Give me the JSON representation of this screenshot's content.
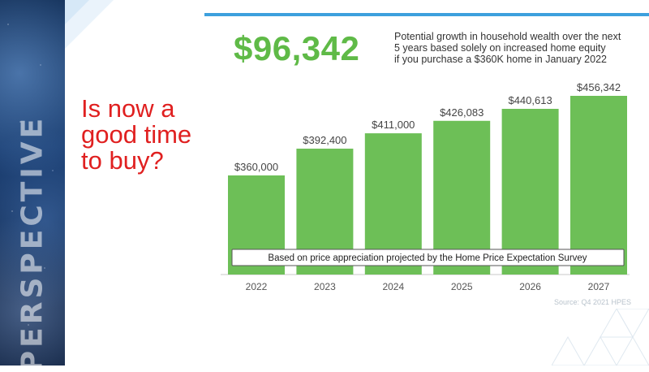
{
  "side_label": "PERSPECTIVE",
  "headline": "Is now a good time to buy?",
  "highlight_value": "$96,342",
  "description_lines": [
    "Potential growth in household wealth over the next",
    "5 years based solely on increased home equity",
    "if you purchase a $360K home in January 2022"
  ],
  "source": "Source: Q4 2021 HPES",
  "colors": {
    "bar": "#6dbf57",
    "highlight": "#5fba47",
    "headline": "#e02020",
    "accent_bar": "#3da0dd"
  },
  "chart_data": {
    "type": "bar",
    "categories": [
      "2022",
      "2023",
      "2024",
      "2025",
      "2026",
      "2027"
    ],
    "values": [
      360000,
      392400,
      411000,
      426083,
      440613,
      456342
    ],
    "value_labels": [
      "$360,000",
      "$392,400",
      "$411,000",
      "$426,083",
      "$440,613",
      "$456,342"
    ],
    "title": "",
    "xlabel": "",
    "ylabel": "",
    "ylim": [
      240000,
      456342
    ],
    "grid": false,
    "annotation": "Based on price appreciation projected by the Home Price Expectation Survey"
  }
}
